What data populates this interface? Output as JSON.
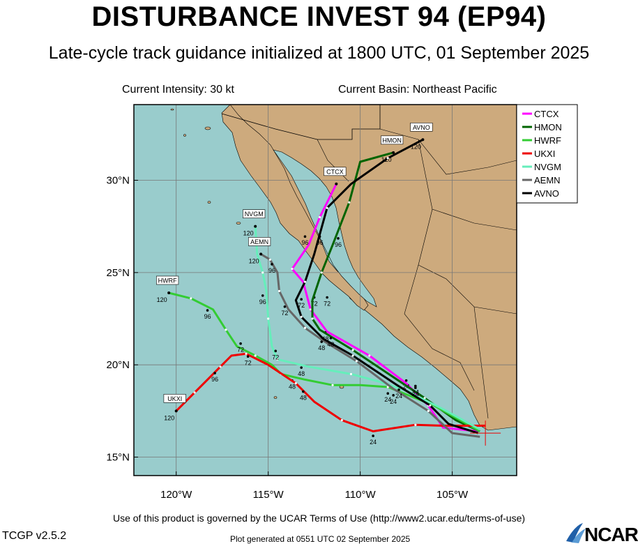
{
  "header": {
    "title": "DISTURBANCE INVEST 94 (EP94)",
    "subtitle": "Late-cycle track guidance initialized at 1800 UTC, 01 September 2025",
    "intensity": "Current Intensity: 30 kt",
    "basin": "Current Basin: Northeast Pacific"
  },
  "footer": {
    "terms": "Use of this product is governed by the UCAR Terms of Use (http://www2.ucar.edu/terms-of-use)",
    "version": "TCGP v2.5.2",
    "generated": "Plot generated at 0551 UTC   02 September 2025",
    "logo_text": "NCAR"
  },
  "colors": {
    "ocean": "#99cccc",
    "land": "#cdaa7d",
    "grid": "#777777"
  },
  "chart_data": {
    "type": "map",
    "lon_range": [
      -122.3,
      -101.5
    ],
    "lat_range": [
      14.0,
      34.1
    ],
    "lon_ticks": [
      {
        "value": -120,
        "label": "120°W"
      },
      {
        "value": -115,
        "label": "115°W"
      },
      {
        "value": -110,
        "label": "110°W"
      },
      {
        "value": -105,
        "label": "105°W"
      }
    ],
    "lat_ticks": [
      {
        "value": 15,
        "label": "15°N"
      },
      {
        "value": 20,
        "label": "20°N"
      },
      {
        "value": 25,
        "label": "25°N"
      },
      {
        "value": 30,
        "label": "30°N"
      }
    ],
    "storm_position": {
      "lon": -103.2,
      "lat": 16.3
    },
    "legend_position": "top-right",
    "series": [
      {
        "name": "CTCX",
        "color": "#ff00ff",
        "track": [
          [
            -103.6,
            16.4
          ],
          [
            -105.5,
            16.6
          ],
          [
            -106.3,
            17.8
          ],
          [
            -107.5,
            19.0
          ],
          [
            -109.5,
            20.5
          ],
          [
            -111.8,
            21.8
          ],
          [
            -112.7,
            23.0
          ],
          [
            -113.1,
            24.5
          ],
          [
            -113.7,
            25.2
          ],
          [
            -112.8,
            26.5
          ],
          [
            -112.2,
            28.0
          ],
          [
            -111.3,
            29.8
          ]
        ],
        "labels": [
          {
            "text": "24",
            "lon": -107.5,
            "lat": 19.0
          },
          {
            "text": "48",
            "lon": -111.9,
            "lat": 21.6
          },
          {
            "text": "72",
            "lon": -112.5,
            "lat": 23.5
          },
          {
            "text": "96",
            "lon": -113.0,
            "lat": 26.8
          }
        ],
        "end_label": "CTCX"
      },
      {
        "name": "HMON",
        "color": "#006400",
        "track": [
          [
            -103.5,
            16.4
          ],
          [
            -104.8,
            17.0
          ],
          [
            -106.5,
            18.2
          ],
          [
            -108.6,
            19.6
          ],
          [
            -110.4,
            20.8
          ],
          [
            -112.2,
            21.9
          ],
          [
            -112.6,
            22.5
          ],
          [
            -112.6,
            23.5
          ],
          [
            -112.1,
            25.0
          ],
          [
            -111.5,
            26.5
          ],
          [
            -110.6,
            28.8
          ],
          [
            -110.0,
            31.0
          ],
          [
            -108.2,
            31.5
          ]
        ],
        "labels": [
          {
            "text": "24",
            "lon": -107.0,
            "lat": 18.7
          },
          {
            "text": "72",
            "lon": -111.8,
            "lat": 23.5
          },
          {
            "text": "96",
            "lon": -111.2,
            "lat": 26.7
          }
        ],
        "end_label": "HMON",
        "end_num": "120"
      },
      {
        "name": "HWRF",
        "color": "#33cc33",
        "track": [
          [
            -103.5,
            16.4
          ],
          [
            -106.0,
            17.8
          ],
          [
            -108.5,
            18.8
          ],
          [
            -110.0,
            18.9
          ],
          [
            -111.5,
            18.9
          ],
          [
            -113.0,
            19.2
          ],
          [
            -114.3,
            19.5
          ],
          [
            -114.8,
            20.0
          ],
          [
            -115.7,
            20.5
          ],
          [
            -116.7,
            21.0
          ],
          [
            -117.3,
            21.9
          ],
          [
            -118.0,
            23.0
          ],
          [
            -119.2,
            23.6
          ],
          [
            -120.4,
            23.9
          ]
        ],
        "labels": [
          {
            "text": "24",
            "lon": -108.2,
            "lat": 18.2
          },
          {
            "text": "48",
            "lon": -113.7,
            "lat": 19.0
          },
          {
            "text": "72",
            "lon": -116.5,
            "lat": 21.0
          },
          {
            "text": "96",
            "lon": -118.3,
            "lat": 22.8
          }
        ],
        "end_label": "HWRF",
        "end_num": "120"
      },
      {
        "name": "UKXI",
        "color": "#ee0000",
        "track": [
          [
            -103.2,
            16.7
          ],
          [
            -105.5,
            16.7
          ],
          [
            -107.0,
            16.75
          ],
          [
            -109.3,
            16.4
          ],
          [
            -111.0,
            17.0
          ],
          [
            -112.5,
            18.0
          ],
          [
            -113.5,
            19.0
          ],
          [
            -115.0,
            20.0
          ],
          [
            -116.2,
            20.6
          ],
          [
            -117.0,
            20.5
          ],
          [
            -117.6,
            19.9
          ],
          [
            -118.3,
            19.2
          ],
          [
            -119.0,
            18.5
          ],
          [
            -120.0,
            17.5
          ]
        ],
        "labels": [
          {
            "text": "24",
            "lon": -109.3,
            "lat": 16.0
          },
          {
            "text": "48",
            "lon": -113.1,
            "lat": 18.4
          },
          {
            "text": "72",
            "lon": -116.1,
            "lat": 20.3
          },
          {
            "text": "96",
            "lon": -117.9,
            "lat": 19.4
          }
        ],
        "end_label": "UKXI",
        "end_num": "120"
      },
      {
        "name": "NVGM",
        "color": "#66eebb",
        "track": [
          [
            -103.5,
            16.5
          ],
          [
            -105.5,
            17.6
          ],
          [
            -107.5,
            18.6
          ],
          [
            -109.0,
            19.1
          ],
          [
            -110.5,
            19.5
          ],
          [
            -112.8,
            19.9
          ],
          [
            -114.5,
            20.3
          ],
          [
            -114.8,
            21.0
          ],
          [
            -115.0,
            22.5
          ],
          [
            -115.1,
            24.0
          ],
          [
            -115.3,
            25.0
          ],
          [
            -115.6,
            26.0
          ],
          [
            -115.7,
            27.5
          ]
        ],
        "labels": [
          {
            "text": "24",
            "lon": -108.5,
            "lat": 18.3
          },
          {
            "text": "48",
            "lon": -113.2,
            "lat": 19.7
          },
          {
            "text": "72",
            "lon": -114.6,
            "lat": 20.6
          },
          {
            "text": "96",
            "lon": -115.3,
            "lat": 23.6
          }
        ],
        "end_label": "NVGM",
        "end_num": "120"
      },
      {
        "name": "AEMN",
        "color": "#666666",
        "track": [
          [
            -103.5,
            16.1
          ],
          [
            -105.0,
            16.3
          ],
          [
            -106.3,
            17.5
          ],
          [
            -108.2,
            18.7
          ],
          [
            -110.2,
            20.2
          ],
          [
            -112.0,
            21.3
          ],
          [
            -113.0,
            22.0
          ],
          [
            -113.9,
            23.0
          ],
          [
            -114.4,
            24.0
          ],
          [
            -114.5,
            25.0
          ],
          [
            -114.9,
            25.7
          ],
          [
            -115.4,
            26.0
          ]
        ],
        "labels": [
          {
            "text": "24",
            "lon": -107.9,
            "lat": 18.5
          },
          {
            "text": "48",
            "lon": -112.1,
            "lat": 21.1
          },
          {
            "text": "72",
            "lon": -114.1,
            "lat": 23.0
          },
          {
            "text": "96",
            "lon": -114.8,
            "lat": 25.3
          }
        ],
        "end_label": "AEMN",
        "end_num": "120"
      },
      {
        "name": "AVNO",
        "color": "#000000",
        "track": [
          [
            -103.6,
            16.3
          ],
          [
            -105.2,
            16.8
          ],
          [
            -106.2,
            17.8
          ],
          [
            -108.0,
            18.9
          ],
          [
            -110.4,
            20.5
          ],
          [
            -112.0,
            21.4
          ],
          [
            -113.2,
            22.6
          ],
          [
            -113.5,
            23.5
          ],
          [
            -113.0,
            24.5
          ],
          [
            -112.5,
            26.0
          ],
          [
            -111.8,
            28.5
          ],
          [
            -110.5,
            29.8
          ],
          [
            -108.5,
            31.2
          ],
          [
            -106.6,
            32.2
          ]
        ],
        "labels": [
          {
            "text": "24",
            "lon": -107.0,
            "lat": 18.6
          },
          {
            "text": "48",
            "lon": -111.6,
            "lat": 21.3
          },
          {
            "text": "72",
            "lon": -113.2,
            "lat": 23.4
          },
          {
            "text": "96",
            "lon": -112.2,
            "lat": 26.8
          }
        ],
        "end_label": "AVNO",
        "end_num": "120"
      }
    ]
  }
}
